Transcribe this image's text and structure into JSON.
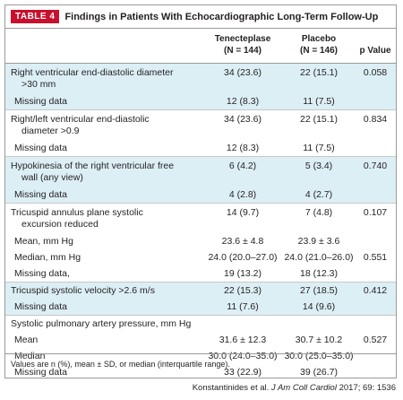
{
  "table": {
    "tag": "TABLE 4",
    "title": "Findings in Patients With Echocardiographic Long-Term Follow-Up",
    "headers": {
      "tenecteplase": "Tenecteplase",
      "tenecteplase_n": "(N = 144)",
      "placebo": "Placebo",
      "placebo_n": "(N = 146)",
      "pvalue": "p Value"
    },
    "rows": [
      {
        "label": "Right ventricular end-diastolic diameter",
        "label2": ">30 mm",
        "c1": "34 (23.6)",
        "c2": "22 (15.1)",
        "c3": "0.058"
      },
      {
        "label": "Missing data",
        "c1": "12 (8.3)",
        "c2": "11 (7.5)",
        "c3": ""
      },
      {
        "label": "Right/left ventricular end-diastolic",
        "label2": "diameter >0.9",
        "c1": "34 (23.6)",
        "c2": "22 (15.1)",
        "c3": "0.834"
      },
      {
        "label": "Missing data",
        "c1": "12 (8.3)",
        "c2": "11 (7.5)",
        "c3": ""
      },
      {
        "label": "Hypokinesia of the right ventricular free",
        "label2": "wall (any view)",
        "c1": "6 (4.2)",
        "c2": "5 (3.4)",
        "c3": "0.740"
      },
      {
        "label": "Missing data",
        "c1": "4 (2.8)",
        "c2": "4 (2.7)",
        "c3": ""
      },
      {
        "label": "Tricuspid annulus plane systolic",
        "label2": "excursion reduced",
        "c1": "14 (9.7)",
        "c2": "7 (4.8)",
        "c3": "0.107"
      },
      {
        "label": "Mean, mm Hg",
        "c1": "23.6 ± 4.8",
        "c2": "23.9 ± 3.6",
        "c3": ""
      },
      {
        "label": "Median, mm Hg",
        "c1": "24.0 (20.0–27.0)",
        "c2": "24.0 (21.0–26.0)",
        "c3": "0.551"
      },
      {
        "label": "Missing data,",
        "c1": "19 (13.2)",
        "c2": "18 (12.3)",
        "c3": ""
      },
      {
        "label": "Tricuspid systolic velocity >2.6 m/s",
        "c1": "22 (15.3)",
        "c2": "27 (18.5)",
        "c3": "0.412"
      },
      {
        "label": "Missing data",
        "c1": "11 (7.6)",
        "c2": "14 (9.6)",
        "c3": ""
      },
      {
        "label": "Systolic pulmonary artery pressure, mm Hg",
        "c1": "",
        "c2": "",
        "c3": ""
      },
      {
        "label": "Mean",
        "c1": "31.6 ± 12.3",
        "c2": "30.7 ± 10.2",
        "c3": "0.527"
      },
      {
        "label": "Median",
        "c1": "30.0 (24.0–35.0)",
        "c2": "30.0 (25.0–35.0)",
        "c3": ""
      },
      {
        "label": "Missing data",
        "c1": "33 (22.9)",
        "c2": "39 (26.7)",
        "c3": ""
      }
    ],
    "footnote": "Values are n (%), mean ± SD, or median (interquartile range)."
  },
  "citation": {
    "authors": "Konstantinides et al.",
    "journal": "J Am Coll Cardiol",
    "ref": "2017; 69: 1536"
  },
  "colors": {
    "tag_bg": "#c8102e",
    "shade": "#dceff5",
    "border": "#9a9a9a"
  }
}
